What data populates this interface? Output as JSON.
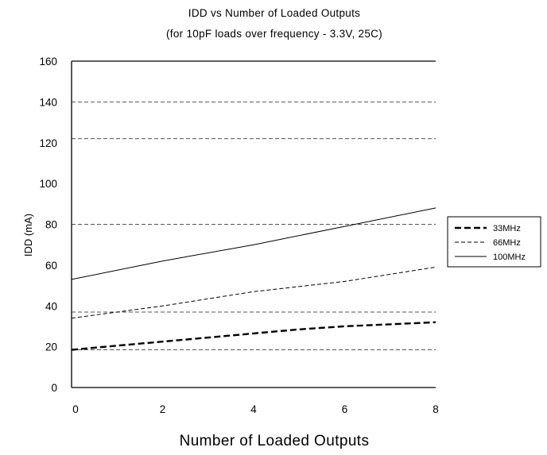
{
  "chart_data": {
    "type": "line",
    "title_main": "IDD vs Number of Loaded Outputs",
    "title_sub": "(for 10pF loads over frequency - 3.3V, 25C)",
    "xlabel": "Number of Loaded Outputs",
    "ylabel": "IDD (mA)",
    "xlim": [
      0,
      8
    ],
    "ylim": [
      0,
      160
    ],
    "x_ticks": [
      "0",
      "2",
      "4",
      "6",
      "8"
    ],
    "y_ticks": [
      "0",
      "20",
      "40",
      "60",
      "80",
      "100",
      "120",
      "140",
      "160"
    ],
    "legend_position": "right",
    "series": [
      {
        "name": "33MHz",
        "style": "dashed-bold",
        "color": "#000000",
        "x": [
          0,
          1,
          2,
          3,
          4,
          5,
          6,
          7,
          8
        ],
        "y": [
          18.5,
          20.5,
          22.5,
          24.5,
          26.5,
          28.5,
          30,
          31,
          32
        ]
      },
      {
        "name": "66MHz",
        "style": "dashed",
        "color": "#000000",
        "x": [
          0,
          2,
          4,
          6,
          8
        ],
        "y": [
          34,
          40,
          47,
          52,
          59
        ]
      },
      {
        "name": "100MHz",
        "style": "solid",
        "color": "#000000",
        "x": [
          0,
          2,
          4,
          6,
          8
        ],
        "y": [
          53,
          62,
          70,
          79,
          88
        ]
      }
    ]
  }
}
